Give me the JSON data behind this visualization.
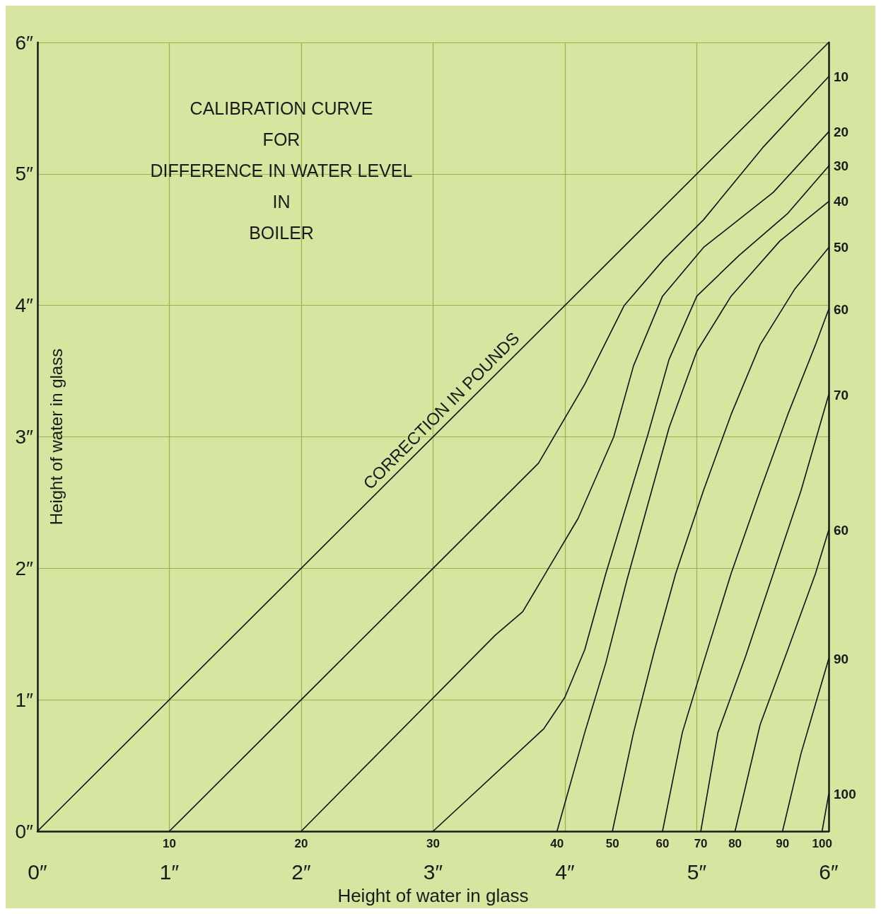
{
  "chart_data": {
    "type": "line",
    "title": "CALIBRATION CURVE\nFOR\nDIFFERENCE IN WATER LEVEL\nIN\nBOILER",
    "xlabel": "Height of water in glass",
    "ylabel": "Height of water in glass",
    "xlim": [
      0,
      6
    ],
    "ylim": [
      0,
      6
    ],
    "xticks": [
      {
        "value": 0,
        "label": "0″"
      },
      {
        "value": 1,
        "label": "1″"
      },
      {
        "value": 2,
        "label": "2″"
      },
      {
        "value": 3,
        "label": "3″"
      },
      {
        "value": 4,
        "label": "4″"
      },
      {
        "value": 5,
        "label": "5″"
      },
      {
        "value": 6,
        "label": "6″"
      }
    ],
    "yticks": [
      {
        "value": 0,
        "label": "0″"
      },
      {
        "value": 1,
        "label": "1″"
      },
      {
        "value": 2,
        "label": "2″"
      },
      {
        "value": 3,
        "label": "3″"
      },
      {
        "value": 4,
        "label": "4″"
      },
      {
        "value": 5,
        "label": "5″"
      },
      {
        "value": 6,
        "label": "6″"
      }
    ],
    "grid": true,
    "marker": "none",
    "line_style": "solid",
    "series": [
      {
        "color": "#111111",
        "x": [
          0,
          6
        ],
        "values": [
          0,
          6
        ]
      },
      {
        "color": "#111111",
        "x": [
          1,
          2,
          3,
          3.55,
          3.8,
          4.15,
          4.45,
          4.75,
          5.05,
          5.5,
          6
        ],
        "values": [
          0,
          1,
          2,
          2.55,
          2.8,
          3.4,
          4,
          4.35,
          4.65,
          5.2,
          5.74
        ]
      },
      {
        "color": "#111111",
        "x": [
          2,
          3.47,
          3.68,
          4.1,
          4.37,
          4.52,
          4.74,
          5.05,
          5.58,
          6
        ],
        "values": [
          0,
          1.49,
          1.67,
          2.38,
          3,
          3.54,
          4.07,
          4.44,
          4.86,
          5.32
        ]
      },
      {
        "color": "#111111",
        "x": [
          3,
          3.84,
          4,
          4.15,
          4.31,
          4.47,
          4.63,
          4.79,
          5,
          5.32,
          5.69,
          6
        ],
        "values": [
          0,
          0.78,
          1.02,
          1.38,
          1.96,
          2.49,
          3.02,
          3.59,
          4.07,
          4.38,
          4.7,
          5.06
        ]
      },
      {
        "color": "#111111",
        "x": [
          3.94,
          4.15,
          4.31,
          4.47,
          4.63,
          4.79,
          5,
          5.26,
          5.63,
          6
        ],
        "values": [
          0,
          0.75,
          1.28,
          1.91,
          2.49,
          3.07,
          3.65,
          4.07,
          4.49,
          4.79
        ]
      },
      {
        "color": "#111111",
        "x": [
          4.36,
          4.52,
          4.68,
          4.84,
          5.05,
          5.26,
          5.48,
          5.74,
          6
        ],
        "values": [
          0,
          0.75,
          1.38,
          1.96,
          2.59,
          3.17,
          3.7,
          4.12,
          4.44
        ]
      },
      {
        "color": "#111111",
        "x": [
          4.74,
          4.89,
          5.05,
          5.26,
          5.48,
          5.69,
          5.9,
          6
        ],
        "values": [
          0,
          0.75,
          1.28,
          1.96,
          2.59,
          3.17,
          3.7,
          3.97
        ]
      },
      {
        "color": "#111111",
        "x": [
          5.03,
          5.16,
          5.37,
          5.58,
          5.79,
          6
        ],
        "values": [
          0,
          0.75,
          1.33,
          1.96,
          2.59,
          3.32
        ]
      },
      {
        "color": "#111111",
        "x": [
          5.29,
          5.48,
          5.69,
          5.9,
          6
        ],
        "values": [
          0,
          0.81,
          1.38,
          1.96,
          2.29
        ]
      },
      {
        "color": "#111111",
        "x": [
          5.65,
          5.79,
          6
        ],
        "values": [
          0,
          0.59,
          1.31
        ]
      },
      {
        "color": "#111111",
        "x": [
          5.95,
          6
        ],
        "values": [
          0,
          0.28
        ]
      }
    ],
    "annotations": [
      {
        "text": "CORRECTION IN POUNDS",
        "x": 3.2,
        "y": 3.2
      },
      {
        "text": "10",
        "x": 1,
        "y": 0
      },
      {
        "text": "20",
        "x": 2,
        "y": 0
      },
      {
        "text": "30",
        "x": 3,
        "y": 0
      },
      {
        "text": "40",
        "x": 3.94,
        "y": 0
      },
      {
        "text": "50",
        "x": 4.36,
        "y": 0
      },
      {
        "text": "60",
        "x": 4.74,
        "y": 0
      },
      {
        "text": "70",
        "x": 5.03,
        "y": 0
      },
      {
        "text": "80",
        "x": 5.29,
        "y": 0
      },
      {
        "text": "90",
        "x": 5.65,
        "y": 0
      },
      {
        "text": "100",
        "x": 5.95,
        "y": 0
      },
      {
        "text": "10",
        "x": 6,
        "y": 5.74
      },
      {
        "text": "20",
        "x": 6,
        "y": 5.32
      },
      {
        "text": "30",
        "x": 6,
        "y": 5.06
      },
      {
        "text": "40",
        "x": 6,
        "y": 4.79
      },
      {
        "text": "50",
        "x": 6,
        "y": 4.44
      },
      {
        "text": "60",
        "x": 6,
        "y": 3.97
      },
      {
        "text": "70",
        "x": 6,
        "y": 3.32
      },
      {
        "text": "60",
        "x": 6,
        "y": 2.29
      },
      {
        "text": "90",
        "x": 6,
        "y": 1.31
      },
      {
        "text": "100",
        "x": 6,
        "y": 0.28
      }
    ]
  }
}
